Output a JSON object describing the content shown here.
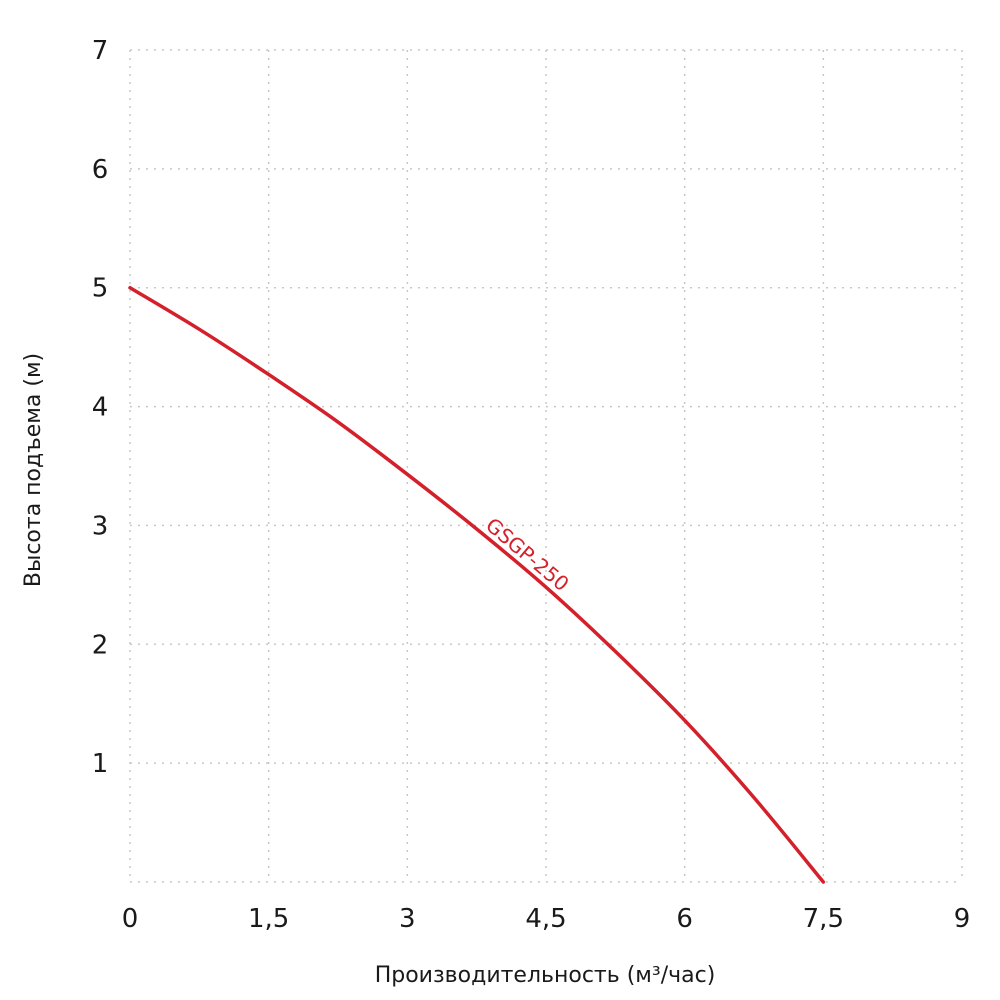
{
  "chart_data": {
    "type": "line",
    "title": "",
    "xlabel": "Производительность (м³/час)",
    "ylabel": "Высота подъема (м)",
    "xlim": [
      0,
      9
    ],
    "ylim": [
      0,
      7
    ],
    "x_ticks": [
      0,
      1.5,
      3,
      4.5,
      6,
      7.5,
      9
    ],
    "x_tick_labels": [
      "0",
      "1,5",
      "3",
      "4,5",
      "6",
      "7,5",
      "9"
    ],
    "y_ticks": [
      1,
      2,
      3,
      4,
      5,
      6,
      7
    ],
    "y_tick_labels": [
      "1",
      "2",
      "3",
      "4",
      "5",
      "6",
      "7"
    ],
    "grid": true,
    "series": [
      {
        "name": "GSGP-250",
        "color": "#d4202a",
        "x": [
          0,
          0.75,
          1.5,
          2.25,
          3,
          3.75,
          4.5,
          5.25,
          6,
          6.75,
          7.5
        ],
        "y": [
          5.0,
          4.65,
          4.27,
          3.87,
          3.43,
          2.97,
          2.48,
          1.94,
          1.36,
          0.71,
          0.0
        ]
      }
    ]
  }
}
